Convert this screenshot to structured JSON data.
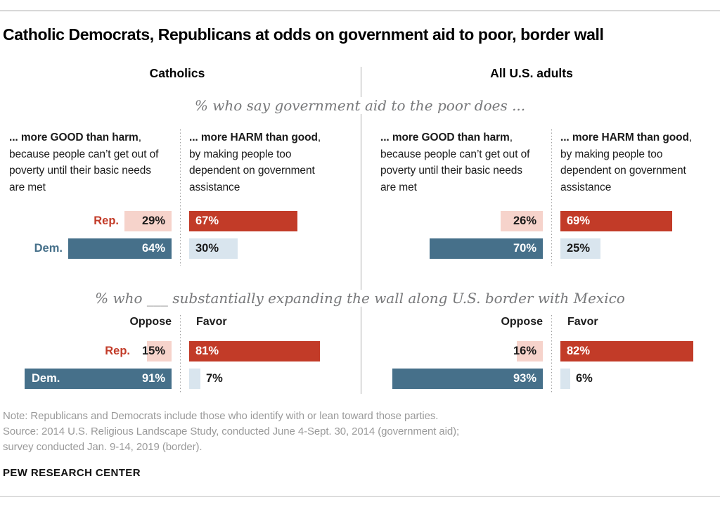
{
  "title": "Catholic Democrats, Republicans at odds on government aid to poor, border wall",
  "aid_headers": {
    "good": {
      "bold": "... more GOOD than harm",
      "rest": ", because people can’t get out of poverty until their basic needs are met"
    },
    "harm": {
      "bold": "... more HARM than good",
      "rest": ", by making people too dependent on government assistance"
    }
  },
  "colors": {
    "rep_light": "#f6d3cb",
    "rep_strong": "#c23b28",
    "dem_strong": "#46708a",
    "dem_light": "#d9e5ee",
    "text_dark": "#1a1a1a",
    "text_white": "#ffffff",
    "divider_gray": "#ababab"
  },
  "chart_data": [
    {
      "type": "bar",
      "title": "% who say government aid to the poor does ...",
      "unit": "%",
      "categories": [
        "... more GOOD than harm",
        "... more HARM than good"
      ],
      "axis_max": 100,
      "panels": [
        {
          "group": "Catholics",
          "party_labels_shown": true,
          "rows": [
            {
              "party": "Rep.",
              "good": 29,
              "harm": 67
            },
            {
              "party": "Dem.",
              "good": 64,
              "harm": 30
            }
          ]
        },
        {
          "group": "All U.S. adults",
          "party_labels_shown": false,
          "rows": [
            {
              "party": "Rep.",
              "good": 26,
              "harm": 69
            },
            {
              "party": "Dem.",
              "good": 70,
              "harm": 25
            }
          ]
        }
      ]
    },
    {
      "type": "bar",
      "title": "% who ___ substantially expanding the wall along U.S. border with Mexico",
      "unit": "%",
      "categories": [
        "Oppose",
        "Favor"
      ],
      "columns": {
        "left": "Oppose",
        "right": "Favor"
      },
      "axis_max": 100,
      "panels": [
        {
          "group": "Catholics",
          "party_labels_shown": true,
          "rows": [
            {
              "party": "Rep.",
              "oppose": 15,
              "favor": 81
            },
            {
              "party": "Dem.",
              "oppose": 91,
              "favor": 7
            }
          ]
        },
        {
          "group": "All U.S. adults",
          "party_labels_shown": false,
          "rows": [
            {
              "party": "Rep.",
              "oppose": 16,
              "favor": 82
            },
            {
              "party": "Dem.",
              "oppose": 93,
              "favor": 6
            }
          ]
        }
      ]
    }
  ],
  "footer": {
    "note": "Note: Republicans and Democrats include those who identify with or lean toward those parties.",
    "source": [
      "Source: 2014 U.S. Religious Landscape Study, conducted June 4-Sept. 30, 2014 (government aid);",
      "survey conducted Jan. 9-14, 2019 (border)."
    ],
    "brand": "PEW RESEARCH CENTER"
  }
}
